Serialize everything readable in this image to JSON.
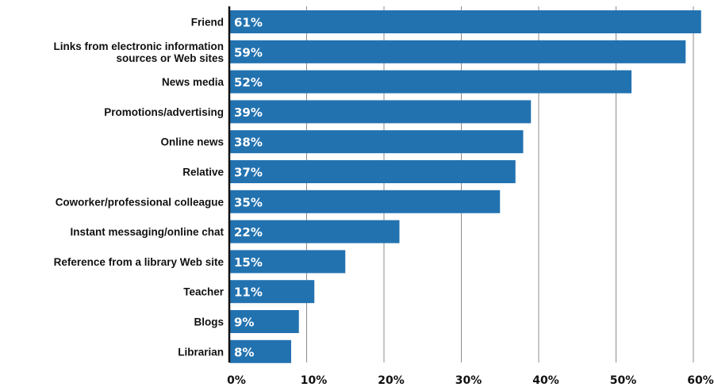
{
  "chart_data": {
    "type": "bar",
    "orientation": "horizontal",
    "title": "",
    "xlabel": "",
    "ylabel": "",
    "xlim": [
      0,
      60
    ],
    "categories": [
      "Friend",
      "Links from electronic information sources or Web sites",
      "News media",
      "Promotions/advertising",
      "Online news",
      "Relative",
      "Coworker/professional colleague",
      "Instant messaging/online chat",
      "Reference from a library Web site",
      "Teacher",
      "Blogs",
      "Librarian"
    ],
    "category_lines": [
      [
        "Friend"
      ],
      [
        "Links from electronic information",
        "sources or Web sites"
      ],
      [
        "News media"
      ],
      [
        "Promotions/advertising"
      ],
      [
        "Online news"
      ],
      [
        "Relative"
      ],
      [
        "Coworker/professional colleague"
      ],
      [
        "Instant messaging/online chat"
      ],
      [
        "Reference from a library Web site"
      ],
      [
        "Teacher"
      ],
      [
        "Blogs"
      ],
      [
        "Librarian"
      ]
    ],
    "values": [
      61,
      59,
      52,
      39,
      38,
      37,
      35,
      22,
      15,
      11,
      9,
      8
    ],
    "value_labels": [
      "61%",
      "59%",
      "52%",
      "39%",
      "38%",
      "37%",
      "35%",
      "22%",
      "15%",
      "11%",
      "9%",
      "8%"
    ],
    "x_ticks": [
      0,
      10,
      20,
      30,
      40,
      50,
      60
    ],
    "x_tick_labels": [
      "0%",
      "10%",
      "20%",
      "30%",
      "40%",
      "50%",
      "60%"
    ],
    "grid": true,
    "legend": "none",
    "colors": {
      "bar": "#2272b0",
      "grid": "#8c8c8c",
      "axis": "#111111",
      "bar_text": "#ffffff"
    }
  }
}
